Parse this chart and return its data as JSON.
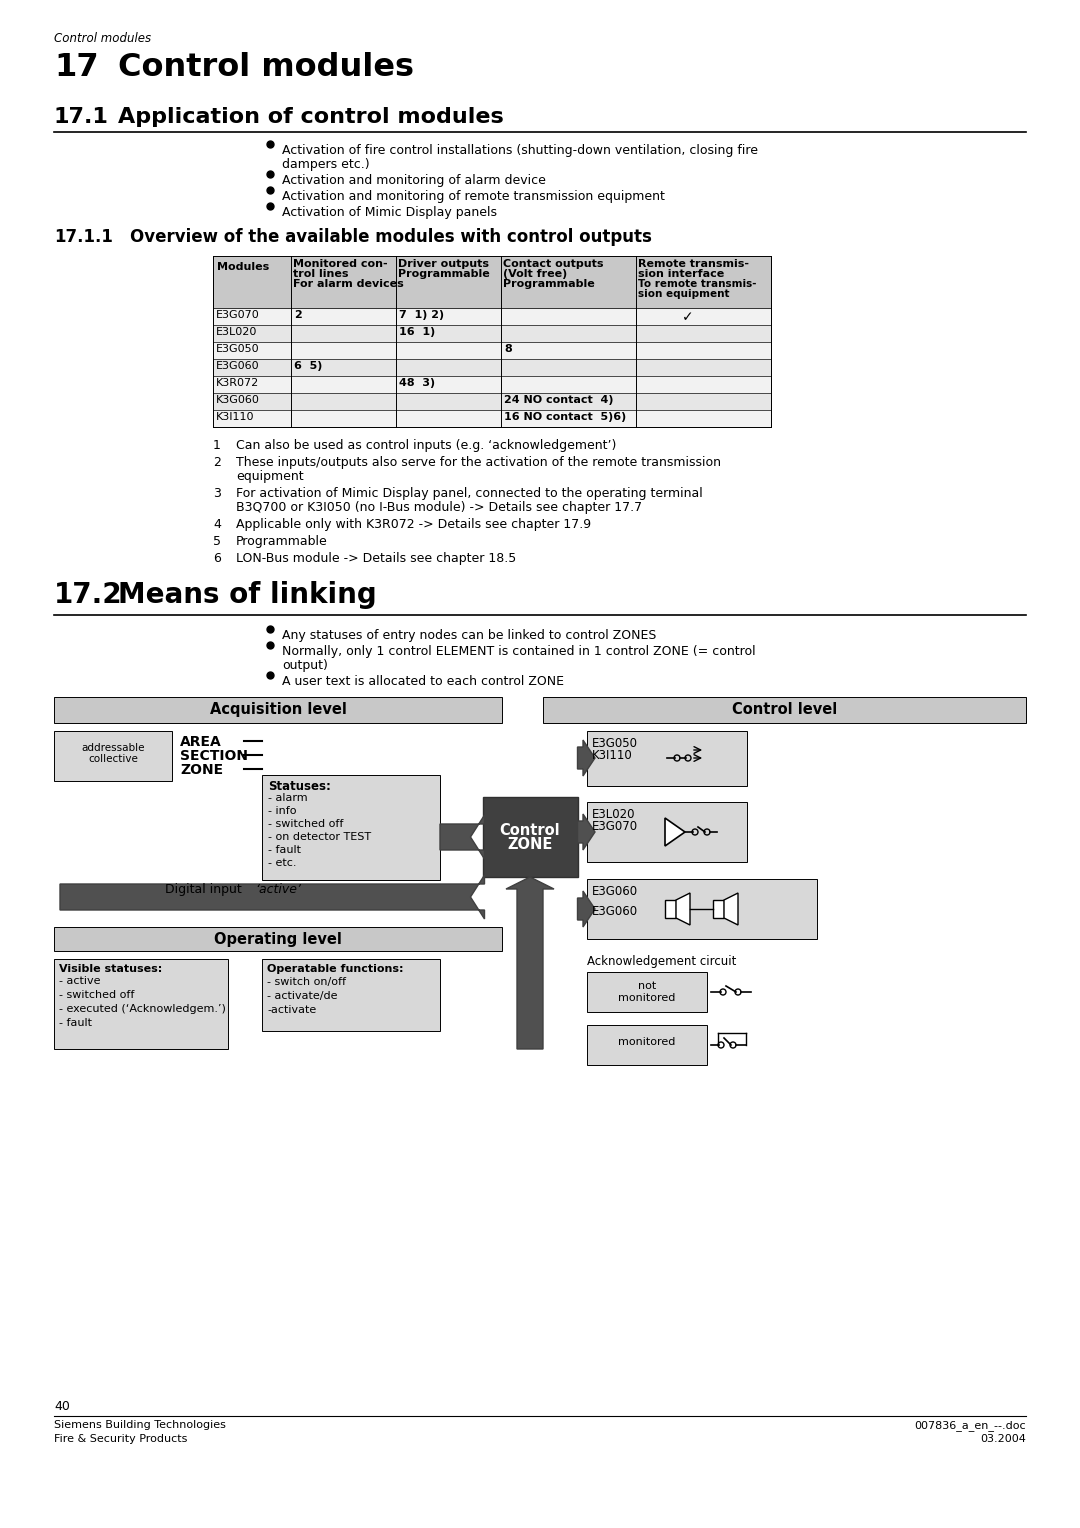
{
  "page_header": "Control modules",
  "title_number": "17",
  "title_text": "Control modules",
  "section_17_1_number": "17.1",
  "section_17_1_text": "Application of control modules",
  "section_17_1_1_number": "17.1.1",
  "section_17_1_1_text": "Overview of the available modules with control outputs",
  "section_17_2_number": "17.2",
  "section_17_2_text": "Means of linking",
  "footer_left_1": "Siemens Building Technologies",
  "footer_left_2": "Fire & Security Products",
  "footer_right_1": "007836_a_en_--.doc",
  "footer_right_2": "03.2004",
  "footer_page": "40",
  "bg_color": "#ffffff"
}
